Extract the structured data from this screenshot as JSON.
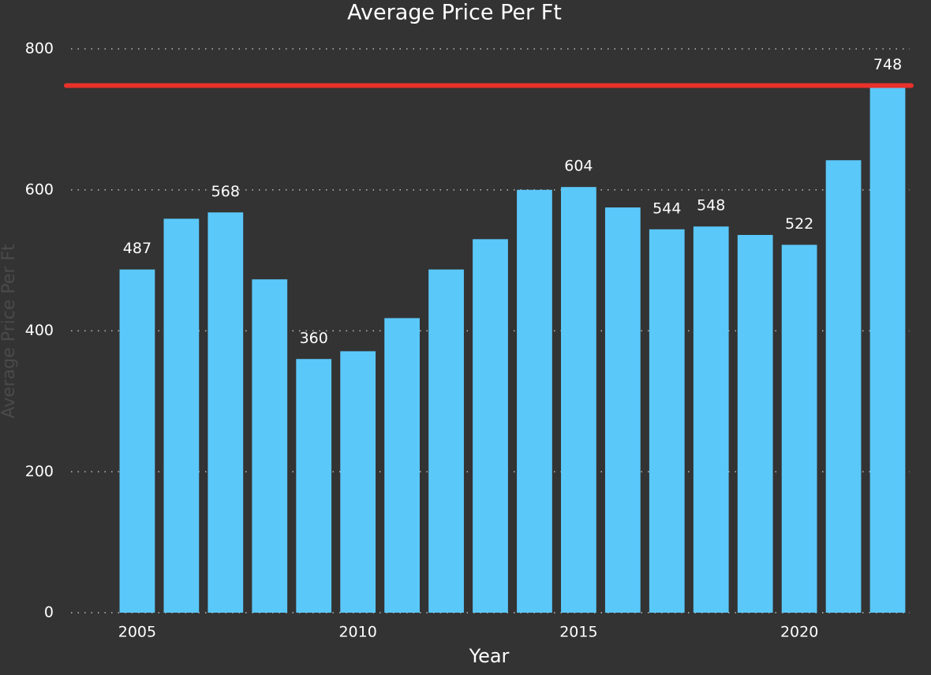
{
  "chart_data": {
    "type": "bar",
    "title": "Average Price Per Ft",
    "x_label": "Year",
    "y_label": "Average Price Per Ft",
    "x": [
      2005,
      2006,
      2007,
      2008,
      2009,
      2010,
      2011,
      2012,
      2013,
      2014,
      2015,
      2016,
      2017,
      2018,
      2019,
      2020,
      2021,
      2022
    ],
    "values": [
      487,
      559,
      568,
      473,
      360,
      371,
      418,
      487,
      530,
      600,
      604,
      575,
      544,
      548,
      536,
      522,
      642,
      748
    ],
    "value_labels": [
      "487",
      null,
      "568",
      null,
      "360",
      null,
      null,
      null,
      null,
      null,
      "604",
      null,
      "544",
      "548",
      null,
      "522",
      null,
      "748"
    ],
    "color": "#5bc8fa",
    "reference_line": {
      "value": 748,
      "color": "#e8312b"
    },
    "xlim": [
      2003.5,
      2022.5
    ],
    "xticks": [
      2005,
      2010,
      2015,
      2020
    ],
    "ylim": [
      0,
      800
    ],
    "yticks": [
      0,
      200,
      400,
      600,
      800
    ],
    "grid": true
  }
}
